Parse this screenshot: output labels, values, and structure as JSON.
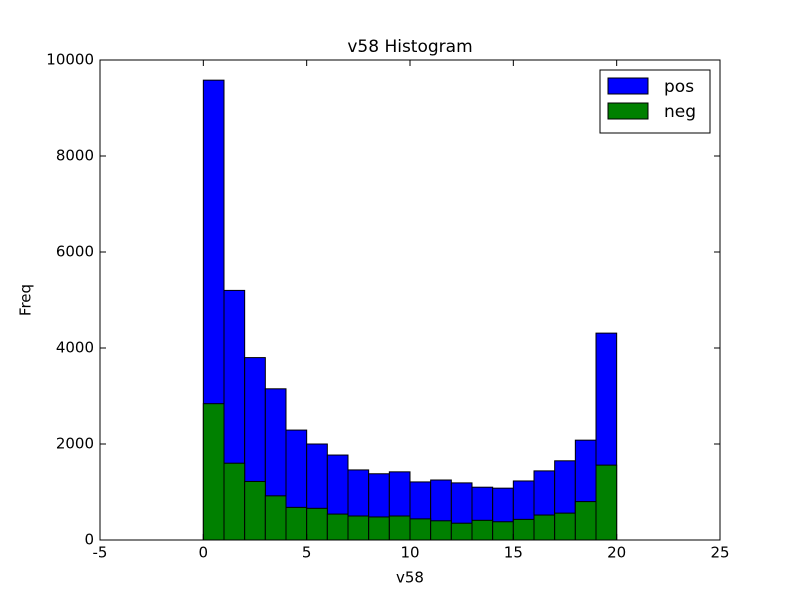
{
  "chart_data": {
    "type": "histogram",
    "title": "v58 Histogram",
    "xlabel": "v58",
    "ylabel": "Freq",
    "bins": [
      0,
      1,
      2,
      3,
      4,
      5,
      6,
      7,
      8,
      9,
      10,
      11,
      12,
      13,
      14,
      15,
      16,
      17,
      18,
      19,
      20
    ],
    "series": [
      {
        "name": "pos",
        "color": "#0000ff",
        "values": [
          9580,
          5200,
          3800,
          3150,
          2290,
          2000,
          1770,
          1460,
          1380,
          1420,
          1210,
          1250,
          1190,
          1100,
          1080,
          1230,
          1440,
          1650,
          2080,
          4310
        ]
      },
      {
        "name": "neg",
        "color": "#008000",
        "values": [
          2840,
          1600,
          1220,
          920,
          680,
          660,
          540,
          500,
          480,
          500,
          440,
          400,
          350,
          410,
          380,
          430,
          520,
          560,
          800,
          1560
        ]
      }
    ],
    "xlim": [
      -5,
      25
    ],
    "xticks": [
      -5,
      0,
      5,
      10,
      15,
      20,
      25
    ],
    "ylim": [
      0,
      10000
    ],
    "yticks": [
      0,
      2000,
      4000,
      6000,
      8000,
      10000
    ],
    "legend": "upper right"
  }
}
